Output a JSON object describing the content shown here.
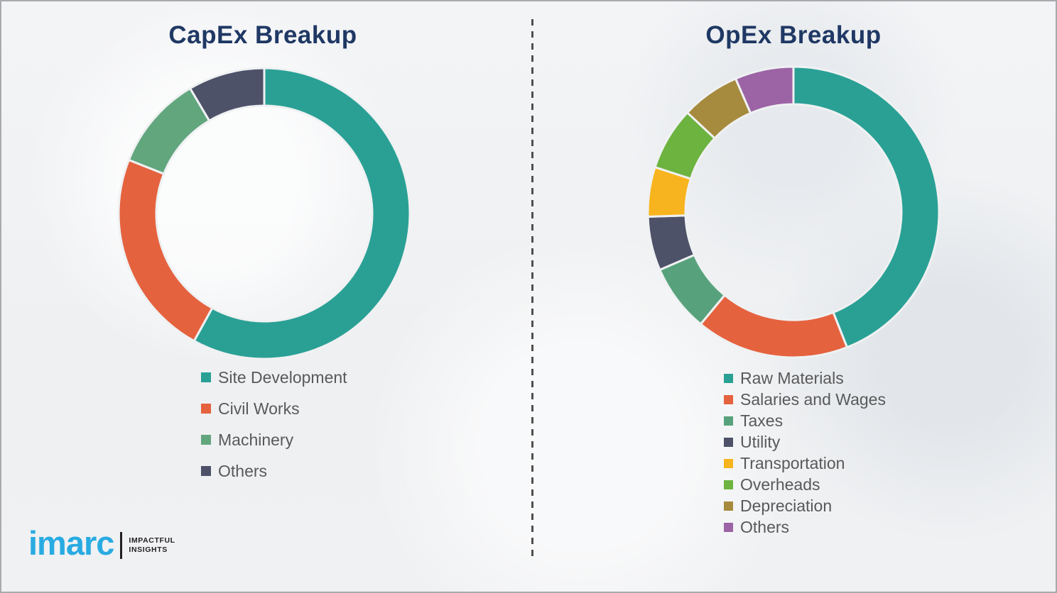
{
  "page": {
    "background_color": "#eff1f2",
    "divider_style": "vertical dashed gray line"
  },
  "titles": {
    "left": "CapEx Breakup",
    "right": "OpEx Breakup",
    "title_color": "#1f3864"
  },
  "legend_text_color": "#595959",
  "chart_data": [
    {
      "type": "pie",
      "variant": "donut",
      "title": "CapEx Breakup",
      "legend_position": "below-chart-left",
      "start_angle_deg": 0,
      "direction": "clockwise",
      "segments": [
        {
          "label": "Site Development",
          "value": 58,
          "color": "#2aa095"
        },
        {
          "label": "Civil Works",
          "value": 23,
          "color": "#e5623e"
        },
        {
          "label": "Machinery",
          "value": 10.5,
          "color": "#62a67e"
        },
        {
          "label": "Others",
          "value": 8.5,
          "color": "#4d5269"
        }
      ]
    },
    {
      "type": "pie",
      "variant": "donut",
      "title": "OpEx Breakup",
      "legend_position": "below-chart-left",
      "start_angle_deg": 0,
      "direction": "clockwise",
      "segments": [
        {
          "label": "Raw Materials",
          "value": 44,
          "color": "#2aa095"
        },
        {
          "label": "Salaries and Wages",
          "value": 17,
          "color": "#e5623e"
        },
        {
          "label": "Taxes",
          "value": 7.5,
          "color": "#57a27c"
        },
        {
          "label": "Utility",
          "value": 6,
          "color": "#4d5269"
        },
        {
          "label": "Transportation",
          "value": 5.5,
          "color": "#f8b41e"
        },
        {
          "label": "Overheads",
          "value": 7,
          "color": "#6db33f"
        },
        {
          "label": "Depreciation",
          "value": 6.5,
          "color": "#a68b3e"
        },
        {
          "label": "Others",
          "value": 6.5,
          "color": "#9c63a5"
        }
      ]
    }
  ],
  "logo": {
    "brand": "imarc",
    "brand_color": "#29abe2",
    "tagline_line1": "IMPACTFUL",
    "tagline_line2": "INSIGHTS"
  }
}
